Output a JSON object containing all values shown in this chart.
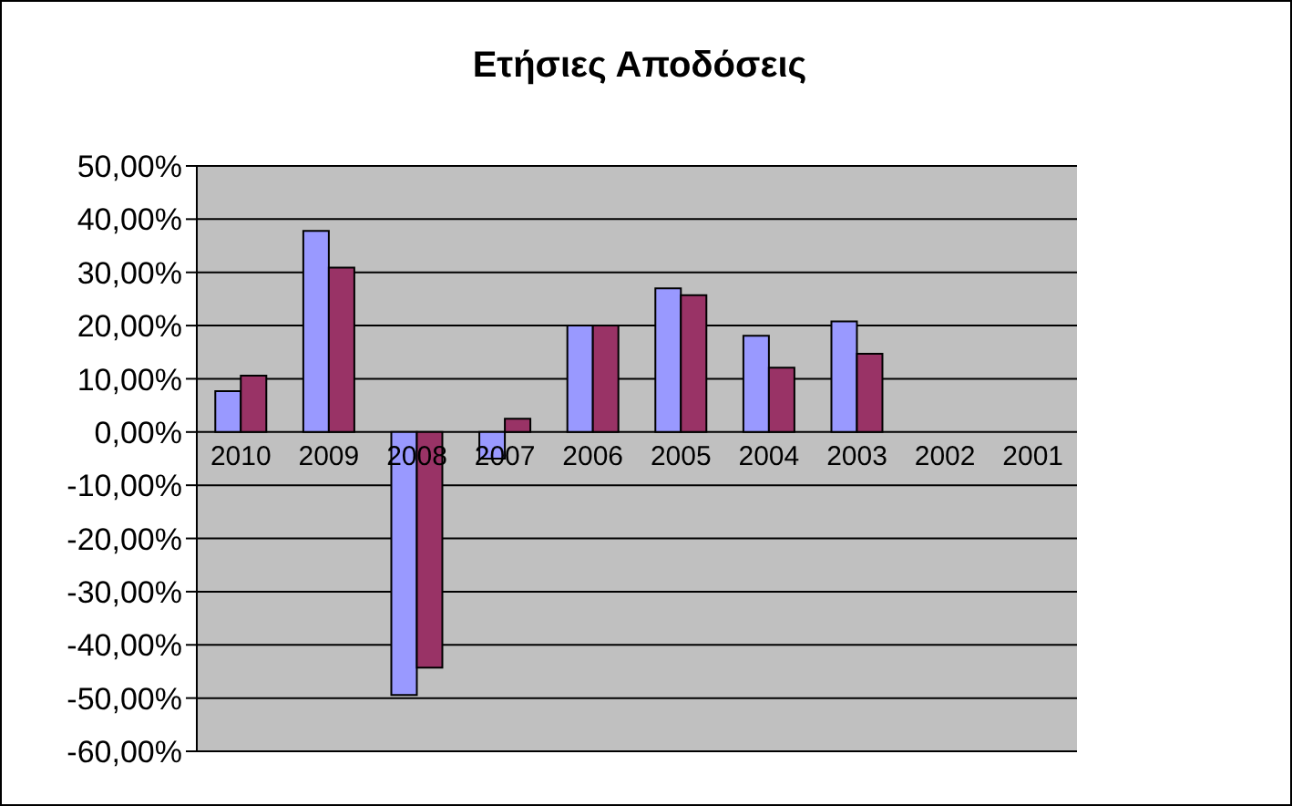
{
  "chart_data": {
    "type": "bar",
    "title": "Ετήσιες Αποδόσεις",
    "categories": [
      "2010",
      "2009",
      "2008",
      "2007",
      "2006",
      "2005",
      "2004",
      "2003",
      "2002",
      "2001"
    ],
    "series": [
      {
        "color": "#9999ff",
        "values": [
          7.7,
          37.8,
          -49.4,
          -5.0,
          20.0,
          27.0,
          18.1,
          20.8,
          null,
          null
        ]
      },
      {
        "color": "#993366",
        "values": [
          10.6,
          30.9,
          -44.3,
          2.5,
          20.0,
          25.7,
          12.1,
          14.7,
          null,
          null
        ]
      }
    ],
    "ylim": [
      -60,
      50
    ],
    "yticks": [
      {
        "value": 50,
        "label": "50,00%"
      },
      {
        "value": 40,
        "label": "40,00%"
      },
      {
        "value": 30,
        "label": "30,00%"
      },
      {
        "value": 20,
        "label": "20,00%"
      },
      {
        "value": 10,
        "label": "10,00%"
      },
      {
        "value": 0,
        "label": "0,00%"
      },
      {
        "value": -10,
        "label": "-10,00%"
      },
      {
        "value": -20,
        "label": "-20,00%"
      },
      {
        "value": -30,
        "label": "-30,00%"
      },
      {
        "value": -40,
        "label": "-40,00%"
      },
      {
        "value": -50,
        "label": "-50,00%"
      },
      {
        "value": -60,
        "label": "-60,00%"
      }
    ],
    "grid": "y",
    "legend": false
  }
}
